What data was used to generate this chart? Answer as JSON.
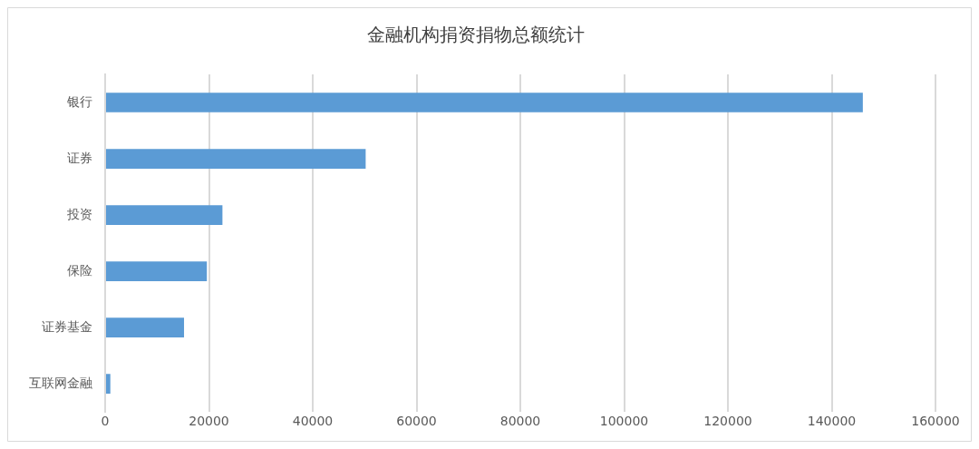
{
  "chart_data": {
    "type": "bar",
    "orientation": "horizontal",
    "title": "金融机构捐资捐物总额统计",
    "categories": [
      "银行",
      "证券",
      "投资",
      "保险",
      "证券基金",
      "互联网金融"
    ],
    "values": [
      146000,
      50200,
      22600,
      19600,
      15200,
      1000
    ],
    "color": "#5b9bd5",
    "xlim": [
      0,
      160000
    ],
    "xticks": [
      0,
      20000,
      40000,
      60000,
      80000,
      100000,
      120000,
      140000,
      160000
    ],
    "grid": "x",
    "legend": false
  }
}
